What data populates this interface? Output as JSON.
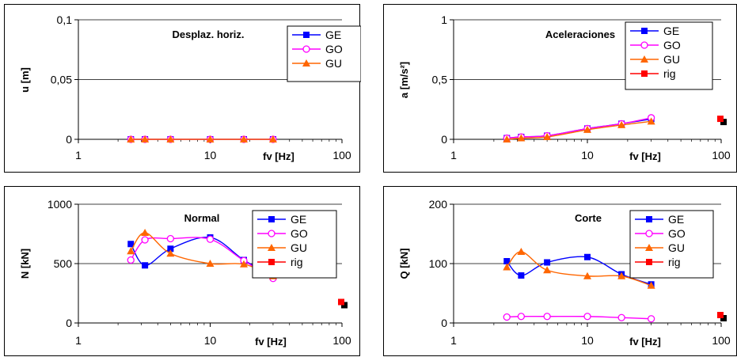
{
  "chart_data": [
    {
      "type": "line",
      "title": "Desplaz. horiz.",
      "xlabel": "fv [Hz]",
      "ylabel": "u [m]",
      "xscale": "log",
      "xlim": [
        1,
        100
      ],
      "ylim": [
        0,
        0.1
      ],
      "xticks": [
        "1",
        "10",
        "100"
      ],
      "yticks": [
        "0",
        "0,05",
        "0,1"
      ],
      "grid": "horizontal",
      "legend_position": "top-right",
      "x": [
        2.5,
        3.2,
        5,
        10,
        18,
        30
      ],
      "series": [
        {
          "name": "GE",
          "values": [
            0,
            0,
            0,
            0,
            0,
            0
          ],
          "color": "#0000ff",
          "marker": "square-filled"
        },
        {
          "name": "GO",
          "values": [
            0,
            0,
            0,
            0,
            0,
            0
          ],
          "color": "#ff00ff",
          "marker": "circle-open"
        },
        {
          "name": "GU",
          "values": [
            0,
            0,
            0,
            0,
            0,
            0
          ],
          "color": "#ff6600",
          "marker": "triangle-filled"
        }
      ]
    },
    {
      "type": "line",
      "title": "Aceleraciones",
      "xlabel": "fv [Hz]",
      "ylabel": "a [m/s²]",
      "xscale": "log",
      "xlim": [
        1,
        100
      ],
      "ylim": [
        0,
        1
      ],
      "xticks": [
        "1",
        "10",
        "100"
      ],
      "yticks": [
        "0",
        "0,5",
        "1"
      ],
      "grid": "horizontal",
      "legend_position": "top-right",
      "x": [
        2.5,
        3.2,
        5,
        10,
        18,
        30
      ],
      "series": [
        {
          "name": "GE",
          "values": [
            0.01,
            0.02,
            0.03,
            0.09,
            0.13,
            0.17
          ],
          "color": "#0000ff",
          "marker": "square-filled"
        },
        {
          "name": "GO",
          "values": [
            0.01,
            0.02,
            0.03,
            0.09,
            0.13,
            0.18
          ],
          "color": "#ff00ff",
          "marker": "circle-open"
        },
        {
          "name": "GU",
          "values": [
            0.0,
            0.01,
            0.02,
            0.08,
            0.12,
            0.15
          ],
          "color": "#ff6600",
          "marker": "triangle-filled"
        },
        {
          "name": "rig",
          "x": [
            100
          ],
          "values": [
            0.165
          ],
          "color": "#ff0000",
          "marker": "square-filled",
          "shadow": true
        }
      ]
    },
    {
      "type": "line",
      "title": "Normal",
      "xlabel": "fv [Hz]",
      "ylabel": "N [kN]",
      "xscale": "log",
      "xlim": [
        1,
        100
      ],
      "ylim": [
        0,
        1000
      ],
      "xticks": [
        "1",
        "10",
        "100"
      ],
      "yticks": [
        "0",
        "500",
        "1000"
      ],
      "grid": "horizontal",
      "legend_position": "top-right",
      "x": [
        2.5,
        3.2,
        5,
        10,
        18,
        30
      ],
      "series": [
        {
          "name": "GE",
          "values": [
            665,
            485,
            625,
            720,
            530,
            390
          ],
          "color": "#0000ff",
          "marker": "square-filled"
        },
        {
          "name": "GO",
          "values": [
            530,
            700,
            710,
            705,
            525,
            375
          ],
          "color": "#ff00ff",
          "marker": "circle-open"
        },
        {
          "name": "GU",
          "values": [
            605,
            760,
            585,
            500,
            495,
            395
          ],
          "color": "#ff6600",
          "marker": "triangle-filled"
        },
        {
          "name": "rig",
          "x": [
            100
          ],
          "values": [
            170
          ],
          "color": "#ff0000",
          "marker": "square-filled",
          "shadow": true
        }
      ]
    },
    {
      "type": "line",
      "title": "Corte",
      "xlabel": "fv [Hz]",
      "ylabel": "Q [kN]",
      "xscale": "log",
      "xlim": [
        1,
        100
      ],
      "ylim": [
        0,
        200
      ],
      "xticks": [
        "1",
        "10",
        "100"
      ],
      "yticks": [
        "0",
        "100",
        "200"
      ],
      "grid": "horizontal",
      "legend_position": "top-right",
      "x": [
        2.5,
        3.2,
        5,
        10,
        18,
        30
      ],
      "series": [
        {
          "name": "GE",
          "values": [
            104,
            80,
            102,
            111,
            82,
            65
          ],
          "color": "#0000ff",
          "marker": "square-filled"
        },
        {
          "name": "GO",
          "values": [
            10,
            11,
            11,
            11,
            9,
            7
          ],
          "color": "#ff00ff",
          "marker": "circle-open"
        },
        {
          "name": "GU",
          "values": [
            94,
            120,
            89,
            79,
            79,
            63
          ],
          "color": "#ff6600",
          "marker": "triangle-filled"
        },
        {
          "name": "rig",
          "x": [
            100
          ],
          "values": [
            12
          ],
          "color": "#ff0000",
          "marker": "square-filled",
          "shadow": true
        }
      ]
    }
  ]
}
